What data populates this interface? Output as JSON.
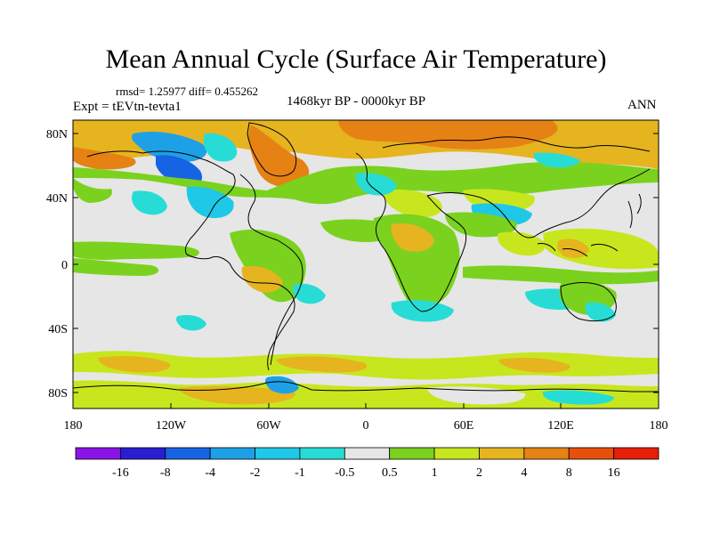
{
  "header": {
    "title": "Mean Annual Cycle (Surface Air Temperature)",
    "stats": "rmsd= 1.25977 diff= 0.455262",
    "experiment": "Expt = tEVtn-tevta1",
    "period": "1468kyr BP - 0000kyr BP",
    "season": "ANN"
  },
  "map": {
    "projection": "cylindrical equidistant",
    "lat_range": [
      -90,
      90
    ],
    "lon_range": [
      -180,
      180
    ],
    "lat_ticks": [
      "80N",
      "40N",
      "0",
      "40S",
      "80S"
    ],
    "lon_ticks": [
      "180",
      "120W",
      "60W",
      "0",
      "60E",
      "120E",
      "180"
    ]
  },
  "colorbar": {
    "labels": [
      "-16",
      "-8",
      "-4",
      "-2",
      "-1",
      "-0.5",
      "0.5",
      "1",
      "2",
      "4",
      "8",
      "16"
    ],
    "colors": [
      "#8a14e6",
      "#2a1ed2",
      "#1664e4",
      "#1ea0e6",
      "#1ec8e6",
      "#28dcd6",
      "#e6e6e6",
      "#7ad21e",
      "#c8e61e",
      "#e6b41e",
      "#e68214",
      "#e6500a",
      "#e61e0a"
    ]
  },
  "palette": {
    "neutral": "#e6e6e6",
    "warm1": "#7ad21e",
    "warm2": "#c8e61e",
    "warm3": "#e6b41e",
    "warm4": "#e68214",
    "cool1": "#28dcd6",
    "cool2": "#1ea0e6",
    "cool3": "#1664e4"
  }
}
